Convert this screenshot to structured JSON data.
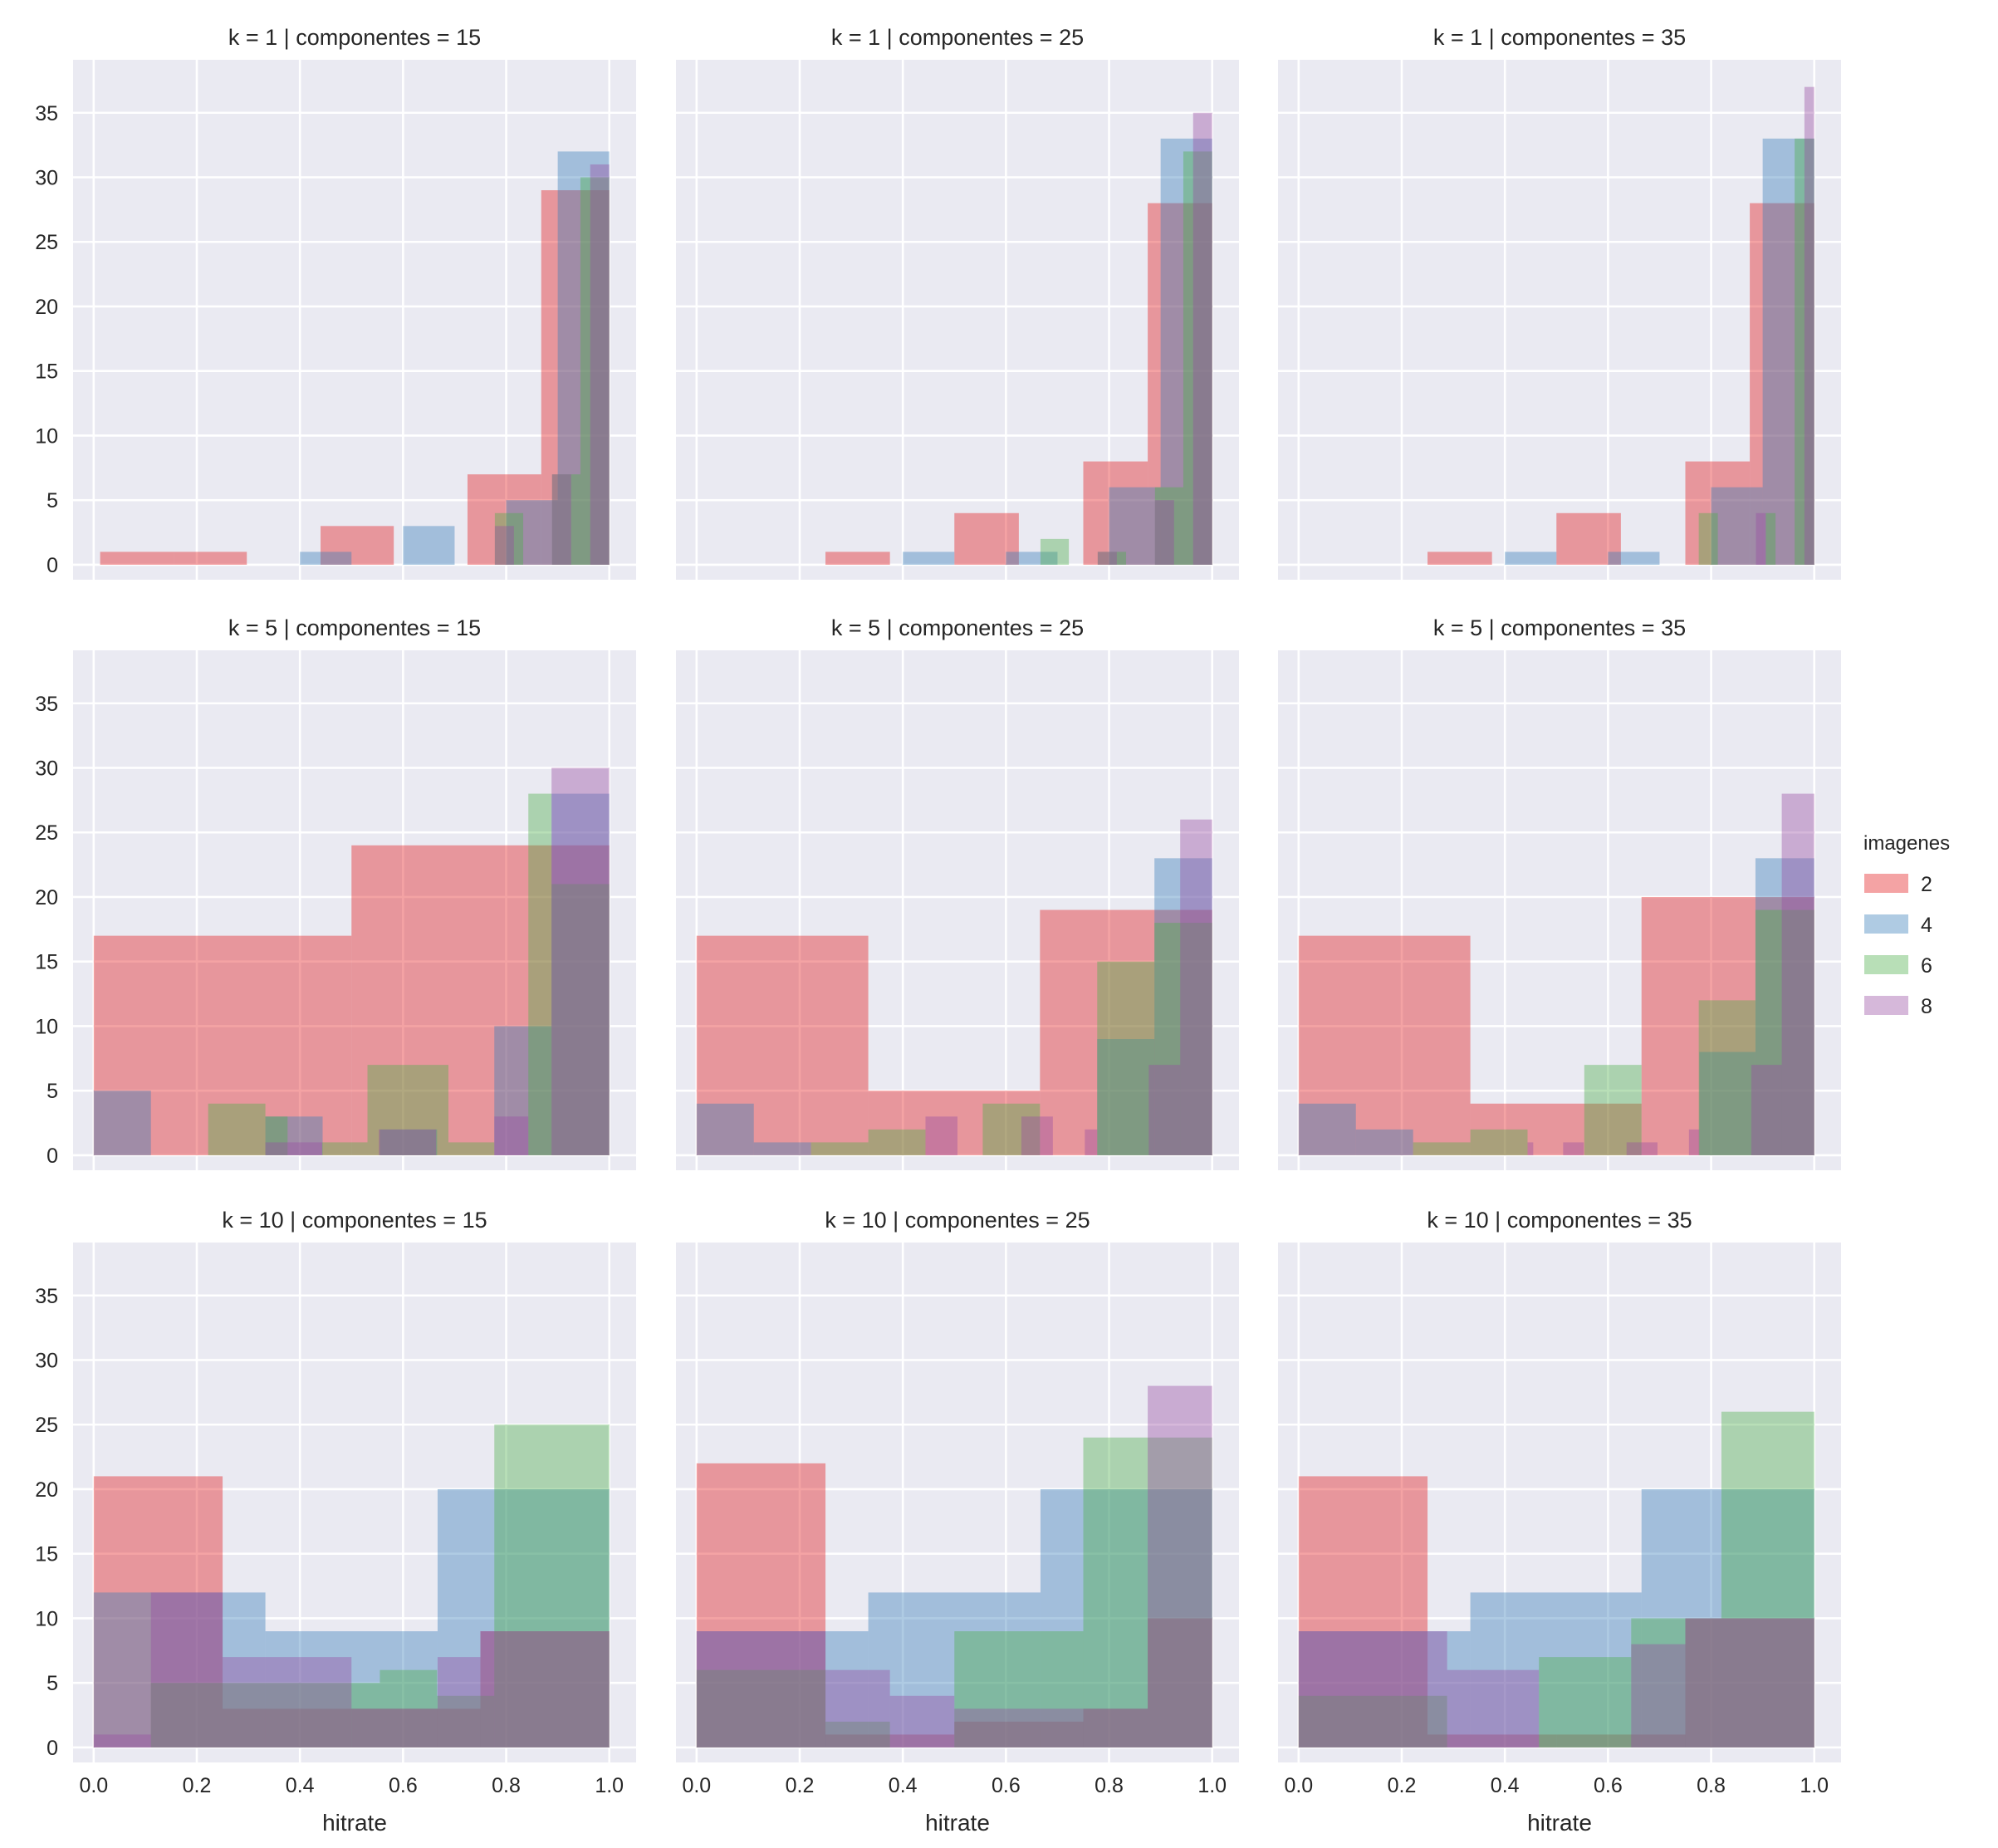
{
  "chart_data": {
    "type": "bar",
    "subtype": "overlaid histogram facet grid",
    "xlabel": "hitrate",
    "ylabel": "",
    "xlim": [
      -0.04,
      1.052
    ],
    "ylim": [
      -1.16,
      39.1
    ],
    "xticks": [
      "0.0",
      "0.2",
      "0.4",
      "0.6",
      "0.8",
      "1.0"
    ],
    "xtick_values": [
      0,
      0.2,
      0.4,
      0.6,
      0.8,
      1.0
    ],
    "yticks": [
      "0",
      "5",
      "10",
      "15",
      "20",
      "25",
      "30",
      "35"
    ],
    "ytick_values": [
      0,
      5,
      10,
      15,
      20,
      25,
      30,
      35
    ],
    "grid": true,
    "alpha": 0.4,
    "legend": {
      "title": "imagenes",
      "placement": "right",
      "entries": [
        {
          "label": "2",
          "color": "#e41a1c"
        },
        {
          "label": "4",
          "color": "#377eb8"
        },
        {
          "label": "6",
          "color": "#4daf4a"
        },
        {
          "label": "8",
          "color": "#984ea3"
        }
      ]
    },
    "panels": [
      {
        "title": "k = 1 | componentes = 15",
        "series": [
          {
            "name": "2",
            "bins": [
              [
                0.0125,
                0.155,
                1
              ],
              [
                0.155,
                0.297,
                1
              ],
              [
                0.44,
                0.582,
                3
              ],
              [
                0.725,
                0.868,
                7
              ],
              [
                0.868,
                1.0,
                29
              ]
            ]
          },
          {
            "name": "4",
            "bins": [
              [
                0.4,
                0.5,
                1
              ],
              [
                0.6,
                0.7,
                3
              ],
              [
                0.8,
                0.9,
                5
              ],
              [
                0.9,
                1.0,
                32
              ]
            ]
          },
          {
            "name": "6",
            "bins": [
              [
                0.778,
                0.833,
                4
              ],
              [
                0.889,
                0.944,
                7
              ],
              [
                0.944,
                1.0,
                30
              ]
            ]
          },
          {
            "name": "8",
            "bins": [
              [
                0.778,
                0.815,
                3
              ],
              [
                0.889,
                0.926,
                7
              ],
              [
                0.963,
                1.0,
                31
              ]
            ]
          }
        ]
      },
      {
        "title": "k = 1 | componentes = 25",
        "series": [
          {
            "name": "2",
            "bins": [
              [
                0.25,
                0.375,
                1
              ],
              [
                0.5,
                0.625,
                4
              ],
              [
                0.75,
                0.875,
                8
              ],
              [
                0.875,
                1.0,
                28
              ]
            ]
          },
          {
            "name": "4",
            "bins": [
              [
                0.4,
                0.5,
                1
              ],
              [
                0.6,
                0.7,
                1
              ],
              [
                0.8,
                0.9,
                6
              ],
              [
                0.9,
                1.0,
                33
              ]
            ]
          },
          {
            "name": "6",
            "bins": [
              [
                0.667,
                0.722,
                2
              ],
              [
                0.778,
                0.833,
                1
              ],
              [
                0.889,
                0.944,
                6
              ],
              [
                0.944,
                1.0,
                32
              ]
            ]
          },
          {
            "name": "8",
            "bins": [
              [
                0.778,
                0.815,
                1
              ],
              [
                0.889,
                0.926,
                5
              ],
              [
                0.963,
                1.0,
                35
              ]
            ]
          }
        ]
      },
      {
        "title": "k = 1 | componentes = 35",
        "series": [
          {
            "name": "2",
            "bins": [
              [
                0.25,
                0.375,
                1
              ],
              [
                0.5,
                0.625,
                4
              ],
              [
                0.75,
                0.875,
                8
              ],
              [
                0.875,
                1.0,
                28
              ]
            ]
          },
          {
            "name": "4",
            "bins": [
              [
                0.4,
                0.5,
                1
              ],
              [
                0.6,
                0.7,
                1
              ],
              [
                0.8,
                0.9,
                6
              ],
              [
                0.9,
                1.0,
                33
              ]
            ]
          },
          {
            "name": "6",
            "bins": [
              [
                0.776,
                0.813,
                4
              ],
              [
                0.906,
                0.925,
                4
              ],
              [
                0.962,
                1.0,
                33
              ]
            ]
          },
          {
            "name": "8",
            "bins": [
              [
                0.887,
                0.906,
                4
              ],
              [
                0.981,
                1.0,
                37
              ]
            ]
          }
        ]
      },
      {
        "title": "k = 5 | componentes = 15",
        "series": [
          {
            "name": "2",
            "bins": [
              [
                0.0,
                0.5,
                17
              ],
              [
                0.5,
                1.0,
                24
              ]
            ]
          },
          {
            "name": "4",
            "bins": [
              [
                0.0,
                0.111,
                5
              ],
              [
                0.333,
                0.444,
                3
              ],
              [
                0.555,
                0.666,
                2
              ],
              [
                0.777,
                0.888,
                10
              ],
              [
                0.888,
                1.0,
                28
              ]
            ]
          },
          {
            "name": "6",
            "bins": [
              [
                0.222,
                0.333,
                4
              ],
              [
                0.333,
                0.376,
                3
              ],
              [
                0.443,
                0.531,
                1
              ],
              [
                0.531,
                0.688,
                7
              ],
              [
                0.688,
                0.777,
                1
              ],
              [
                0.843,
                0.888,
                28
              ],
              [
                0.888,
                1.0,
                21
              ]
            ]
          },
          {
            "name": "8",
            "bins": [
              [
                0.333,
                0.443,
                1
              ],
              [
                0.553,
                0.664,
                2
              ],
              [
                0.777,
                0.843,
                3
              ],
              [
                0.888,
                1.0,
                30
              ]
            ]
          }
        ]
      },
      {
        "title": "k = 5 | componentes = 25",
        "series": [
          {
            "name": "2",
            "bins": [
              [
                0.0,
                0.333,
                17
              ],
              [
                0.333,
                0.666,
                5
              ],
              [
                0.666,
                1.0,
                19
              ]
            ]
          },
          {
            "name": "4",
            "bins": [
              [
                0.0,
                0.111,
                4
              ],
              [
                0.111,
                0.222,
                1
              ],
              [
                0.777,
                0.888,
                9
              ],
              [
                0.888,
                1.0,
                23
              ]
            ]
          },
          {
            "name": "6",
            "bins": [
              [
                0.222,
                0.333,
                1
              ],
              [
                0.333,
                0.444,
                2
              ],
              [
                0.555,
                0.666,
                4
              ],
              [
                0.777,
                0.888,
                15
              ],
              [
                0.888,
                1.0,
                18
              ]
            ]
          },
          {
            "name": "8",
            "bins": [
              [
                0.444,
                0.506,
                3
              ],
              [
                0.63,
                0.691,
                3
              ],
              [
                0.753,
                0.777,
                2
              ],
              [
                0.877,
                0.938,
                7
              ],
              [
                0.938,
                1.0,
                26
              ]
            ]
          }
        ]
      },
      {
        "title": "k = 5 | componentes = 35",
        "series": [
          {
            "name": "2",
            "bins": [
              [
                0.0,
                0.333,
                17
              ],
              [
                0.333,
                0.665,
                4
              ],
              [
                0.665,
                1.0,
                20
              ]
            ]
          },
          {
            "name": "4",
            "bins": [
              [
                0.0,
                0.111,
                4
              ],
              [
                0.111,
                0.222,
                2
              ],
              [
                0.777,
                0.886,
                8
              ],
              [
                0.886,
                1.0,
                23
              ]
            ]
          },
          {
            "name": "6",
            "bins": [
              [
                0.222,
                0.333,
                1
              ],
              [
                0.333,
                0.444,
                2
              ],
              [
                0.554,
                0.665,
                7
              ],
              [
                0.776,
                0.886,
                12
              ],
              [
                0.886,
                1.0,
                19
              ]
            ]
          },
          {
            "name": "8",
            "bins": [
              [
                0.444,
                0.455,
                1
              ],
              [
                0.513,
                0.553,
                1
              ],
              [
                0.636,
                0.696,
                1
              ],
              [
                0.757,
                0.777,
                2
              ],
              [
                0.878,
                0.937,
                7
              ],
              [
                0.937,
                1.0,
                28
              ]
            ]
          }
        ]
      },
      {
        "title": "k = 10 | componentes = 15",
        "series": [
          {
            "name": "2",
            "bins": [
              [
                0.0,
                0.25,
                21
              ],
              [
                0.25,
                0.5,
                3
              ],
              [
                0.5,
                0.75,
                3
              ],
              [
                0.75,
                1.0,
                9
              ]
            ]
          },
          {
            "name": "4",
            "bins": [
              [
                0.0,
                0.333,
                12
              ],
              [
                0.333,
                0.667,
                9
              ],
              [
                0.667,
                1.0,
                20
              ]
            ]
          },
          {
            "name": "6",
            "bins": [
              [
                0.111,
                0.333,
                5
              ],
              [
                0.333,
                0.555,
                5
              ],
              [
                0.555,
                0.666,
                6
              ],
              [
                0.666,
                0.777,
                4
              ],
              [
                0.777,
                1.0,
                25
              ]
            ]
          },
          {
            "name": "8",
            "bins": [
              [
                0.0,
                0.111,
                1
              ],
              [
                0.111,
                0.25,
                12
              ],
              [
                0.25,
                0.5,
                7
              ],
              [
                0.5,
                0.667,
                3
              ],
              [
                0.667,
                0.75,
                7
              ],
              [
                0.75,
                1.0,
                9
              ]
            ]
          }
        ]
      },
      {
        "title": "k = 10 | componentes = 25",
        "series": [
          {
            "name": "2",
            "bins": [
              [
                0.0,
                0.25,
                22
              ],
              [
                0.25,
                0.5,
                1
              ],
              [
                0.5,
                0.75,
                2
              ],
              [
                0.75,
                0.875,
                3
              ],
              [
                0.875,
                1.0,
                10
              ]
            ]
          },
          {
            "name": "4",
            "bins": [
              [
                0.0,
                0.333,
                9
              ],
              [
                0.333,
                0.667,
                12
              ],
              [
                0.667,
                1.0,
                20
              ]
            ]
          },
          {
            "name": "6",
            "bins": [
              [
                0.0,
                0.25,
                6
              ],
              [
                0.25,
                0.375,
                2
              ],
              [
                0.5,
                0.75,
                9
              ],
              [
                0.75,
                1.0,
                24
              ]
            ]
          },
          {
            "name": "8",
            "bins": [
              [
                0.0,
                0.25,
                9
              ],
              [
                0.25,
                0.375,
                6
              ],
              [
                0.375,
                0.5,
                4
              ],
              [
                0.5,
                0.75,
                3
              ],
              [
                0.75,
                0.875,
                3
              ],
              [
                0.875,
                1.0,
                28
              ]
            ]
          }
        ]
      },
      {
        "title": "k = 10 | componentes = 35",
        "series": [
          {
            "name": "2",
            "bins": [
              [
                0.0,
                0.25,
                21
              ],
              [
                0.25,
                0.5,
                1
              ],
              [
                0.5,
                0.75,
                1
              ],
              [
                0.75,
                1.0,
                10
              ]
            ]
          },
          {
            "name": "4",
            "bins": [
              [
                0.0,
                0.333,
                9
              ],
              [
                0.333,
                0.665,
                12
              ],
              [
                0.665,
                1.0,
                20
              ]
            ]
          },
          {
            "name": "6",
            "bins": [
              [
                0.0,
                0.288,
                4
              ],
              [
                0.466,
                0.645,
                7
              ],
              [
                0.645,
                0.82,
                10
              ],
              [
                0.82,
                1.0,
                26
              ]
            ]
          },
          {
            "name": "8",
            "bins": [
              [
                0.0,
                0.288,
                9
              ],
              [
                0.288,
                0.466,
                6
              ],
              [
                0.645,
                0.75,
                8
              ],
              [
                0.75,
                1.0,
                10
              ]
            ]
          }
        ]
      }
    ]
  }
}
